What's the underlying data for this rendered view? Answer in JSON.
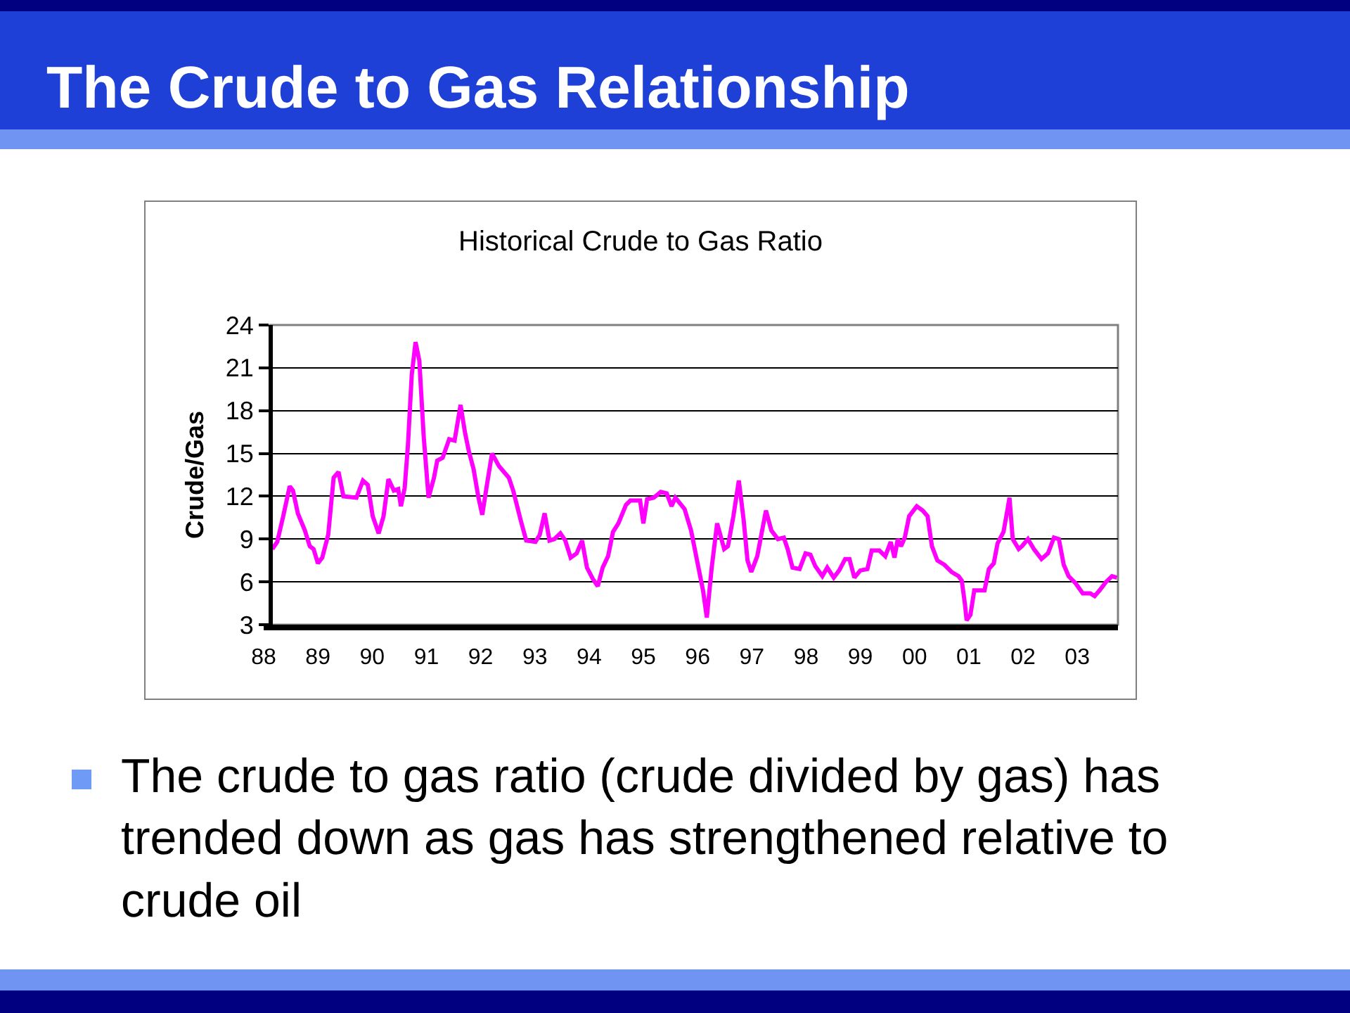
{
  "chart_data": {
    "type": "line",
    "title": "The Crude to Gas Relationship",
    "subtitle": "Historical Crude to Gas Ratio",
    "ylabel": "Crude/Gas",
    "x": [
      1988.16,
      1988.25,
      1988.36,
      1988.48,
      1988.54,
      1988.63,
      1988.76,
      1988.85,
      1988.92,
      1989.0,
      1989.08,
      1989.19,
      1989.29,
      1989.38,
      1989.47,
      1989.71,
      1989.83,
      1989.92,
      1990.01,
      1990.12,
      1990.21,
      1990.3,
      1990.4,
      1990.48,
      1990.53,
      1990.6,
      1990.66,
      1990.73,
      1990.8,
      1990.87,
      1990.95,
      1991.04,
      1991.14,
      1991.2,
      1991.3,
      1991.42,
      1991.52,
      1991.63,
      1991.71,
      1991.78,
      1991.87,
      1991.96,
      1992.03,
      1992.12,
      1992.21,
      1992.34,
      1992.52,
      1992.6,
      1992.74,
      1992.84,
      1993.01,
      1993.09,
      1993.18,
      1993.27,
      1993.36,
      1993.47,
      1993.56,
      1993.66,
      1993.77,
      1993.87,
      1993.96,
      1994.07,
      1994.16,
      1994.25,
      1994.35,
      1994.44,
      1994.54,
      1994.68,
      1994.76,
      1994.94,
      1995.0,
      1995.07,
      1995.19,
      1995.32,
      1995.43,
      1995.52,
      1995.59,
      1995.76,
      1995.88,
      1996.0,
      1996.1,
      1996.17,
      1996.26,
      1996.36,
      1996.49,
      1996.56,
      1996.66,
      1996.76,
      1996.85,
      1996.92,
      1996.99,
      1997.1,
      1997.26,
      1997.36,
      1997.48,
      1997.59,
      1997.66,
      1997.75,
      1997.88,
      1997.99,
      1998.08,
      1998.17,
      1998.3,
      1998.39,
      1998.51,
      1998.61,
      1998.72,
      1998.8,
      1998.89,
      1999.0,
      1999.13,
      1999.21,
      1999.35,
      1999.46,
      1999.56,
      1999.63,
      1999.69,
      1999.75,
      1999.82,
      1999.9,
      2000.04,
      2000.15,
      2000.24,
      2000.32,
      2000.42,
      2000.55,
      2000.68,
      2000.81,
      2000.87,
      2000.93,
      2000.96,
      2001.03,
      2001.1,
      2001.2,
      2001.29,
      2001.37,
      2001.46,
      2001.53,
      2001.64,
      2001.71,
      2001.75,
      2001.81,
      2001.92,
      2001.98,
      2002.09,
      2002.2,
      2002.34,
      2002.46,
      2002.57,
      2002.66,
      2002.75,
      2002.84,
      2002.97,
      2003.1,
      2003.24,
      2003.32,
      2003.41,
      2003.53,
      2003.64,
      2003.73
    ],
    "series": [
      {
        "color": "#ff00ff",
        "values": [
          8.3,
          8.8,
          10.6,
          12.7,
          12.4,
          10.8,
          9.6,
          8.5,
          8.3,
          7.3,
          7.7,
          9.3,
          13.3,
          13.7,
          12.0,
          11.9,
          13.1,
          12.8,
          10.6,
          9.4,
          10.6,
          13.2,
          12.4,
          12.5,
          11.3,
          12.6,
          15.6,
          20.5,
          22.8,
          21.5,
          16.2,
          11.9,
          13.3,
          14.5,
          14.7,
          16.0,
          15.9,
          18.4,
          16.5,
          15.2,
          13.9,
          11.9,
          10.7,
          12.9,
          15.0,
          14.1,
          13.3,
          12.4,
          10.3,
          8.9,
          8.8,
          9.3,
          10.8,
          8.9,
          9.0,
          9.4,
          8.9,
          7.7,
          8.0,
          8.9,
          7.0,
          6.2,
          5.7,
          7.0,
          7.8,
          9.5,
          10.1,
          11.4,
          11.7,
          11.7,
          10.1,
          11.8,
          11.9,
          12.3,
          12.2,
          11.3,
          11.9,
          11.1,
          9.6,
          7.3,
          5.4,
          3.5,
          7.0,
          10.1,
          8.3,
          8.5,
          10.6,
          13.1,
          10.3,
          7.5,
          6.7,
          7.8,
          11.0,
          9.6,
          9.0,
          9.1,
          8.3,
          7.0,
          6.9,
          8.0,
          7.9,
          7.1,
          6.4,
          7.0,
          6.3,
          6.8,
          7.6,
          7.6,
          6.3,
          6.8,
          6.9,
          8.2,
          8.2,
          7.8,
          8.8,
          7.7,
          9.0,
          8.5,
          9.1,
          10.6,
          11.3,
          11.0,
          10.6,
          8.5,
          7.5,
          7.2,
          6.7,
          6.4,
          6.1,
          4.4,
          3.3,
          3.7,
          5.4,
          5.4,
          5.4,
          6.9,
          7.3,
          8.7,
          9.5,
          11.0,
          11.9,
          9.0,
          8.3,
          8.5,
          9.0,
          8.3,
          7.6,
          8.0,
          9.1,
          9.0,
          7.2,
          6.4,
          5.9,
          5.2,
          5.2,
          5.0,
          5.4,
          6.0,
          6.4,
          6.3
        ]
      }
    ],
    "xlim": [
      1988,
      2003.75
    ],
    "xticks": [
      {
        "value": 1988,
        "label": "88"
      },
      {
        "value": 1989,
        "label": "89"
      },
      {
        "value": 1990,
        "label": "90"
      },
      {
        "value": 1991,
        "label": "91"
      },
      {
        "value": 1992,
        "label": "92"
      },
      {
        "value": 1993,
        "label": "93"
      },
      {
        "value": 1994,
        "label": "94"
      },
      {
        "value": 1995,
        "label": "95"
      },
      {
        "value": 1996,
        "label": "96"
      },
      {
        "value": 1997,
        "label": "97"
      },
      {
        "value": 1998,
        "label": "98"
      },
      {
        "value": 1999,
        "label": "99"
      },
      {
        "value": 2000,
        "label": "00"
      },
      {
        "value": 2001,
        "label": "01"
      },
      {
        "value": 2002,
        "label": "02"
      },
      {
        "value": 2003,
        "label": "03"
      }
    ],
    "ylim": [
      3,
      24
    ],
    "yticks": [
      3,
      6,
      9,
      12,
      15,
      18,
      21,
      24
    ],
    "grid": "y",
    "marker": "none",
    "line_style": "solid",
    "annotations": [
      "The crude to gas ratio (crude divided by gas) has trended down as gas has strengthened relative to crude oil"
    ]
  }
}
